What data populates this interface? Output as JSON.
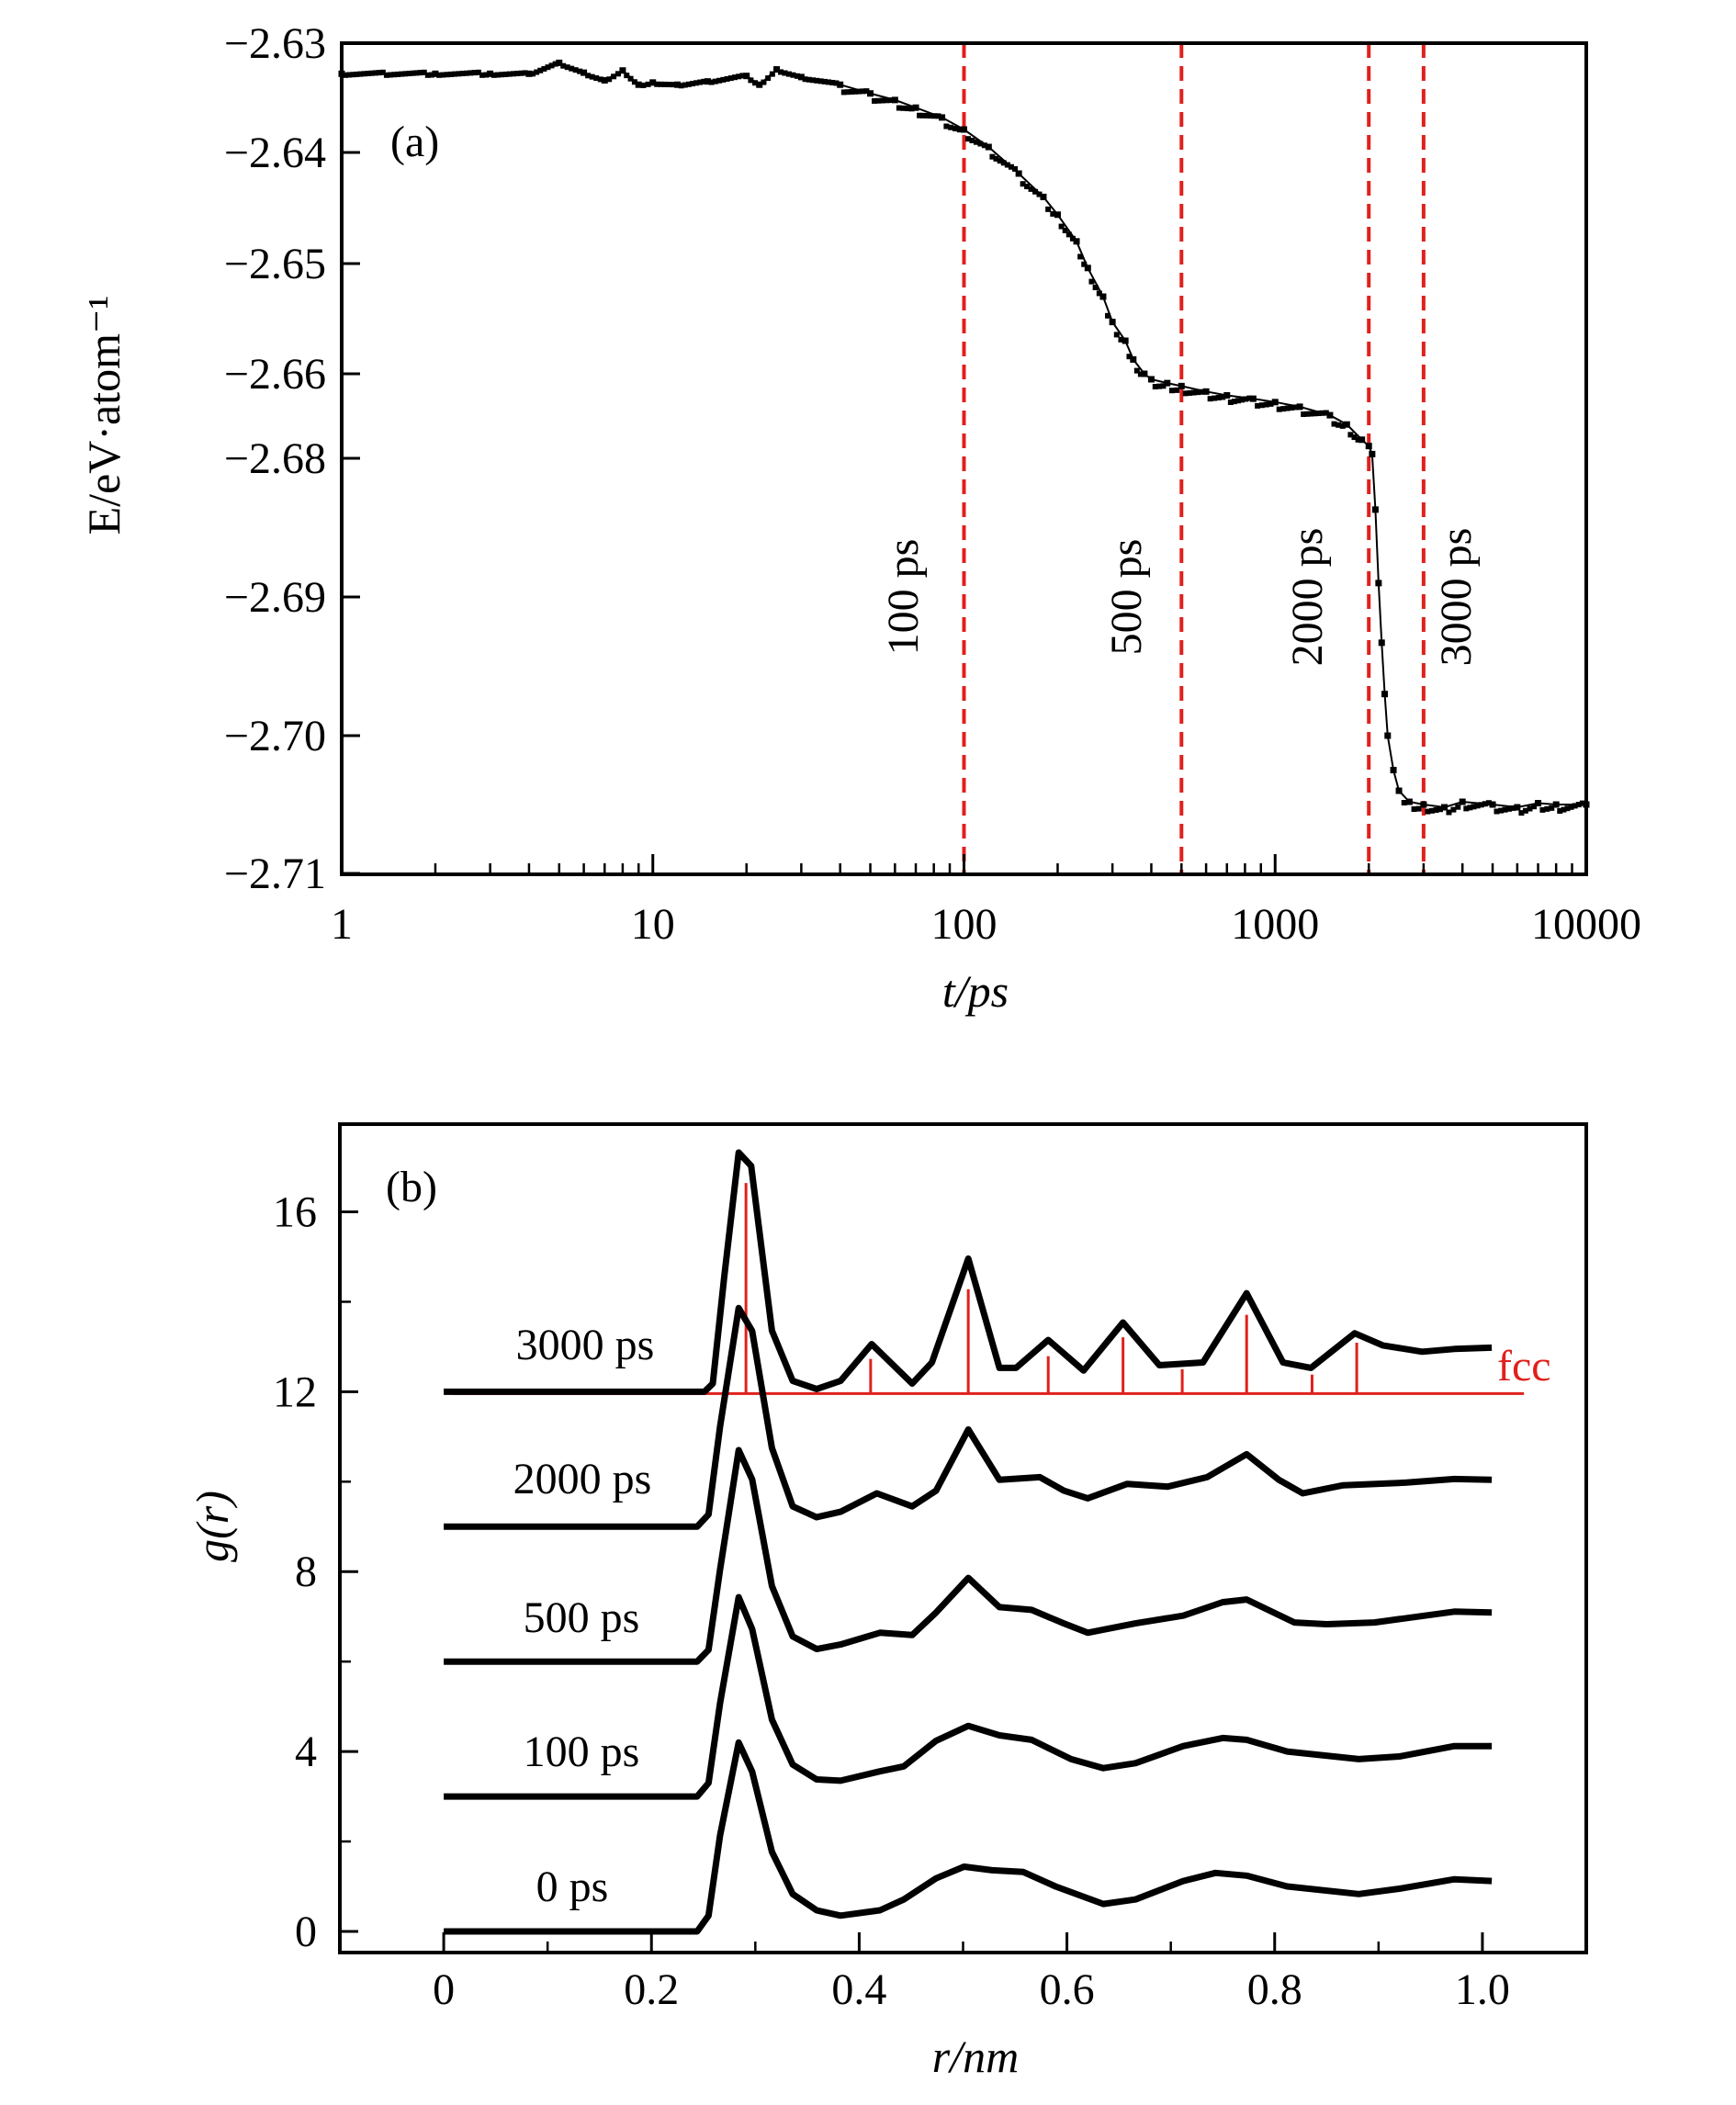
{
  "chart_data": [
    {
      "panel": "(a)",
      "type": "line",
      "xlabel": "t/ps",
      "ylabel": "E/eV·atom⁻¹",
      "x_scale": "log",
      "xlim": [
        1,
        10000
      ],
      "x_ticks": [
        "1",
        "10",
        "100",
        "1000",
        "10000"
      ],
      "x_tick_values": [
        1,
        10,
        100,
        1000,
        10000
      ],
      "y_ticks": [
        "−2.63",
        "−2.64",
        "−2.65",
        "−2.66",
        "−2.68",
        "−2.69",
        "−2.70",
        "−2.71"
      ],
      "y_tick_values": [
        -2.63,
        -2.64,
        -2.65,
        -2.66,
        -2.68,
        -2.69,
        -2.7,
        -2.71
      ],
      "grid": false,
      "series_color": "#000000",
      "series": [
        {
          "x": [
            1,
            2,
            3,
            4,
            5,
            6,
            7,
            8,
            9,
            10,
            12,
            15,
            20,
            22,
            25,
            30,
            40,
            50,
            60,
            70,
            85,
            100,
            120,
            150,
            180,
            200,
            230,
            250,
            280,
            300,
            330,
            350,
            380,
            400,
            450,
            500,
            600,
            700,
            850,
            1000,
            1200,
            1500,
            1700,
            1900,
            2000,
            2050,
            2100,
            2150,
            2200,
            2250,
            2300,
            2400,
            2500,
            2700,
            3000,
            3500,
            4000,
            5000,
            6000,
            7000,
            8000,
            10000
          ],
          "y": [
            -2.6328,
            -2.6328,
            -2.6328,
            -2.6328,
            -2.6318,
            -2.6327,
            -2.6334,
            -2.6325,
            -2.6338,
            -2.6336,
            -2.6338,
            -2.6335,
            -2.633,
            -2.6338,
            -2.6324,
            -2.6331,
            -2.6338,
            -2.6346,
            -2.6352,
            -2.6359,
            -2.6368,
            -2.6379,
            -2.6395,
            -2.6419,
            -2.644,
            -2.6456,
            -2.648,
            -2.6504,
            -2.653,
            -2.6553,
            -2.657,
            -2.6587,
            -2.66,
            -2.6613,
            -2.6622,
            -2.6629,
            -2.6642,
            -2.6651,
            -2.6659,
            -2.6667,
            -2.6678,
            -2.6698,
            -2.672,
            -2.6756,
            -2.6771,
            -2.679,
            -2.6837,
            -2.689,
            -2.6933,
            -2.697,
            -2.7,
            -2.7025,
            -2.704,
            -2.7048,
            -2.705,
            -2.7052,
            -2.7048,
            -2.705,
            -2.7052,
            -2.7049,
            -2.705,
            -2.705
          ]
        }
      ],
      "reference_lines": [
        {
          "x": 100,
          "label": "100 ps"
        },
        {
          "x": 500,
          "label": "500 ps"
        },
        {
          "x": 2000,
          "label": "2000 ps"
        },
        {
          "x": 3000,
          "label": "3000 ps"
        }
      ],
      "reference_line_color": "#e0201c"
    },
    {
      "panel": "(b)",
      "type": "line",
      "xlabel": "r/nm",
      "ylabel": "g(r)",
      "xlim": [
        -0.1,
        1.1
      ],
      "ylim": [
        -0.47,
        17.95
      ],
      "x_ticks": [
        "0",
        "0.2",
        "0.4",
        "0.6",
        "0.8",
        "1.0"
      ],
      "x_tick_values": [
        0,
        0.2,
        0.4,
        0.6,
        0.8,
        1.0
      ],
      "y_ticks": [
        "0",
        "4",
        "8",
        "12",
        "16"
      ],
      "y_tick_values": [
        0,
        4,
        8,
        12,
        16
      ],
      "grid": false,
      "series_color": "#000000",
      "series": [
        {
          "name": "0 ps",
          "offset": 0,
          "x": [
            0,
            0.244,
            0.255,
            0.266,
            0.284,
            0.297,
            0.316,
            0.336,
            0.359,
            0.382,
            0.42,
            0.443,
            0.474,
            0.501,
            0.528,
            0.558,
            0.589,
            0.635,
            0.666,
            0.712,
            0.743,
            0.773,
            0.812,
            0.881,
            0.92,
            0.973,
            1.009
          ],
          "y": [
            0,
            0,
            0.35,
            2.13,
            4.2,
            3.55,
            1.77,
            0.83,
            0.47,
            0.35,
            0.47,
            0.71,
            1.18,
            1.44,
            1.36,
            1.32,
            1.0,
            0.61,
            0.71,
            1.12,
            1.3,
            1.24,
            1.0,
            0.83,
            0.95,
            1.16,
            1.12
          ]
        },
        {
          "name": "100 ps",
          "offset": 3,
          "x": [
            0,
            0.244,
            0.255,
            0.266,
            0.284,
            0.297,
            0.316,
            0.336,
            0.359,
            0.382,
            0.42,
            0.443,
            0.474,
            0.505,
            0.535,
            0.566,
            0.604,
            0.635,
            0.666,
            0.712,
            0.75,
            0.773,
            0.812,
            0.881,
            0.92,
            0.973,
            1.009
          ],
          "y": [
            0,
            0,
            0.3,
            2.07,
            4.43,
            3.72,
            1.71,
            0.71,
            0.38,
            0.35,
            0.56,
            0.67,
            1.24,
            1.57,
            1.36,
            1.26,
            0.83,
            0.63,
            0.74,
            1.12,
            1.3,
            1.26,
            1.0,
            0.83,
            0.89,
            1.12,
            1.12
          ]
        },
        {
          "name": "500 ps",
          "offset": 6,
          "x": [
            0,
            0.244,
            0.255,
            0.266,
            0.284,
            0.297,
            0.316,
            0.336,
            0.359,
            0.382,
            0.42,
            0.451,
            0.474,
            0.505,
            0.535,
            0.566,
            0.597,
            0.62,
            0.666,
            0.712,
            0.75,
            0.773,
            0.819,
            0.85,
            0.896,
            0.973,
            1.009
          ],
          "y": [
            0,
            0,
            0.26,
            2.04,
            4.7,
            4.05,
            1.68,
            0.56,
            0.28,
            0.38,
            0.64,
            0.59,
            1.09,
            1.86,
            1.21,
            1.15,
            0.85,
            0.64,
            0.85,
            1.02,
            1.32,
            1.38,
            0.87,
            0.83,
            0.87,
            1.11,
            1.09
          ]
        },
        {
          "name": "2000 ps",
          "offset": 9,
          "x": [
            0,
            0.244,
            0.255,
            0.266,
            0.284,
            0.297,
            0.316,
            0.336,
            0.359,
            0.382,
            0.417,
            0.451,
            0.474,
            0.505,
            0.535,
            0.574,
            0.597,
            0.62,
            0.658,
            0.697,
            0.735,
            0.773,
            0.804,
            0.827,
            0.866,
            0.927,
            0.973,
            1.009
          ],
          "y": [
            0,
            0,
            0.27,
            2.22,
            4.86,
            4.35,
            1.75,
            0.45,
            0.21,
            0.33,
            0.74,
            0.45,
            0.8,
            2.16,
            1.04,
            1.1,
            0.8,
            0.63,
            0.95,
            0.89,
            1.1,
            1.61,
            1.04,
            0.74,
            0.92,
            0.98,
            1.06,
            1.04
          ]
        },
        {
          "name": "3000 ps",
          "offset": 12,
          "x": [
            0,
            0.251,
            0.259,
            0.27,
            0.284,
            0.296,
            0.316,
            0.336,
            0.359,
            0.382,
            0.412,
            0.451,
            0.47,
            0.505,
            0.535,
            0.551,
            0.582,
            0.616,
            0.654,
            0.689,
            0.731,
            0.773,
            0.808,
            0.835,
            0.877,
            0.904,
            0.942,
            0.973,
            1.009
          ],
          "y": [
            0,
            0,
            0.18,
            2.54,
            5.32,
            5.02,
            1.36,
            0.24,
            0.06,
            0.24,
            1.06,
            0.18,
            0.65,
            2.96,
            0.53,
            0.53,
            1.15,
            0.47,
            1.54,
            0.59,
            0.65,
            2.19,
            0.65,
            0.53,
            1.3,
            1.03,
            0.89,
            0.95,
            0.98
          ]
        }
      ],
      "reference": {
        "label": "fcc",
        "color": "#e0201c",
        "baseline": 11.96,
        "baseline_x_range": [
          0.009,
          1.04
        ],
        "sticks": [
          {
            "x": 0.291,
            "y": 16.64
          },
          {
            "x": 0.411,
            "y": 12.73
          },
          {
            "x": 0.505,
            "y": 14.28
          },
          {
            "x": 0.582,
            "y": 12.79
          },
          {
            "x": 0.654,
            "y": 13.21
          },
          {
            "x": 0.711,
            "y": 12.5
          },
          {
            "x": 0.773,
            "y": 13.71
          },
          {
            "x": 0.836,
            "y": 12.38
          },
          {
            "x": 0.879,
            "y": 13.09
          }
        ]
      }
    }
  ]
}
